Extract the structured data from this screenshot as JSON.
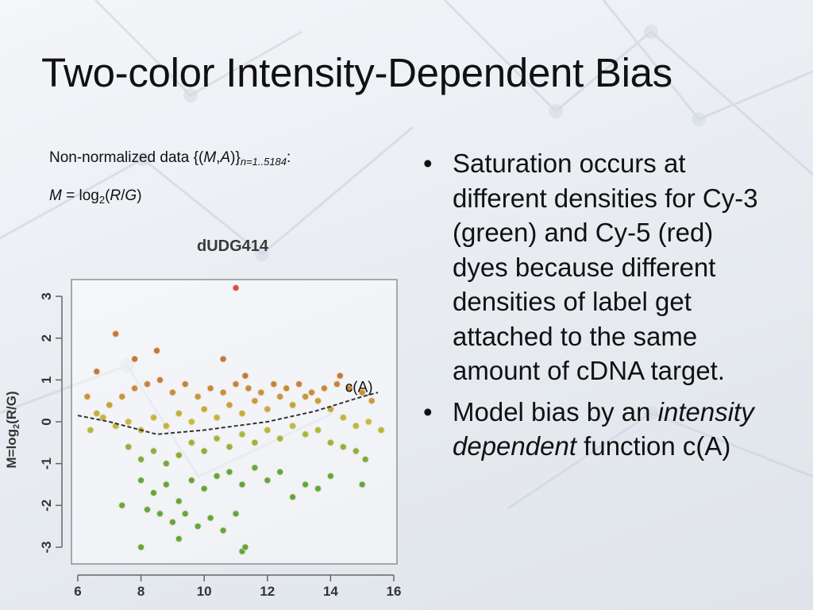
{
  "slide": {
    "title": "Two-color Intensity-Dependent Bias",
    "caption_1": {
      "prefix": "Non-normalized data {(",
      "m": "M",
      "comma": ",",
      "a": "A",
      "close": ")}",
      "subscript": "n=1..5184",
      "suffix": ":"
    },
    "caption_2": {
      "m": "M",
      "eq": " = log",
      "base": "2",
      "open": "(",
      "r": "R",
      "slash": "/",
      "g": "G",
      "close": ")"
    },
    "bullets": [
      {
        "mark": "•",
        "text": "Saturation occurs at different densities for Cy-3 (green) and Cy-5 (red) dyes because different densities of label get attached to the same amount of cDNA target."
      },
      {
        "mark": "•",
        "text_before": "Model bias by an ",
        "text_italic": "intensity dependent",
        "text_after": " function c(A)"
      }
    ]
  },
  "chart_data": {
    "type": "scatter",
    "title": "dUDG414",
    "xlabel": "",
    "ylabel": "M=log2(R/G)",
    "ylabel_parts": {
      "pre": "M=log",
      "sub": "2",
      "post": "(R/G)"
    },
    "xlim": [
      5.8,
      16.1
    ],
    "ylim": [
      -3.4,
      3.4
    ],
    "xticks": [
      6,
      8,
      10,
      12,
      14,
      16
    ],
    "yticks": [
      -3,
      -2,
      -1,
      0,
      1,
      2,
      3
    ],
    "grid": false,
    "colors": {
      "low_M": "#3d9e1c",
      "mid": "#b7b412",
      "high_M": "#b86218",
      "outlier": "#cf2e2e",
      "curve": "#333333"
    },
    "series": [
      {
        "points": [
          [
            11.0,
            3.2
          ],
          [
            7.2,
            2.1
          ],
          [
            8.5,
            1.7
          ],
          [
            7.8,
            1.5
          ],
          [
            10.6,
            1.5
          ],
          [
            11.3,
            1.1
          ],
          [
            14.3,
            1.1
          ],
          [
            6.6,
            1.2
          ],
          [
            6.3,
            0.6
          ],
          [
            6.6,
            0.2
          ],
          [
            7.0,
            0.4
          ],
          [
            7.4,
            0.6
          ],
          [
            7.8,
            0.8
          ],
          [
            8.2,
            0.9
          ],
          [
            8.6,
            1.0
          ],
          [
            9.0,
            0.7
          ],
          [
            9.4,
            0.9
          ],
          [
            9.8,
            0.6
          ],
          [
            10.2,
            0.8
          ],
          [
            10.6,
            0.7
          ],
          [
            11.0,
            0.9
          ],
          [
            11.4,
            0.8
          ],
          [
            11.8,
            0.7
          ],
          [
            12.2,
            0.9
          ],
          [
            12.6,
            0.8
          ],
          [
            13.0,
            0.9
          ],
          [
            13.4,
            0.7
          ],
          [
            13.8,
            0.8
          ],
          [
            14.2,
            0.9
          ],
          [
            14.6,
            0.8
          ],
          [
            15.0,
            0.7
          ],
          [
            15.3,
            0.5
          ],
          [
            6.4,
            -0.2
          ],
          [
            6.8,
            0.1
          ],
          [
            7.2,
            -0.1
          ],
          [
            7.6,
            0.0
          ],
          [
            8.0,
            -0.2
          ],
          [
            8.4,
            0.1
          ],
          [
            8.8,
            -0.1
          ],
          [
            9.2,
            0.2
          ],
          [
            9.6,
            0.0
          ],
          [
            10.0,
            0.3
          ],
          [
            10.4,
            0.1
          ],
          [
            10.8,
            0.4
          ],
          [
            11.2,
            0.2
          ],
          [
            11.6,
            0.5
          ],
          [
            12.0,
            0.3
          ],
          [
            12.4,
            0.6
          ],
          [
            12.8,
            0.4
          ],
          [
            13.2,
            0.6
          ],
          [
            13.6,
            0.5
          ],
          [
            14.0,
            0.3
          ],
          [
            14.4,
            0.1
          ],
          [
            14.8,
            -0.1
          ],
          [
            15.2,
            0.0
          ],
          [
            15.6,
            -0.2
          ],
          [
            7.6,
            -0.6
          ],
          [
            8.0,
            -0.9
          ],
          [
            8.4,
            -0.7
          ],
          [
            8.8,
            -1.0
          ],
          [
            9.2,
            -0.8
          ],
          [
            9.6,
            -0.5
          ],
          [
            10.0,
            -0.7
          ],
          [
            10.4,
            -0.4
          ],
          [
            10.8,
            -0.6
          ],
          [
            11.2,
            -0.3
          ],
          [
            11.6,
            -0.5
          ],
          [
            12.0,
            -0.2
          ],
          [
            12.4,
            -0.4
          ],
          [
            12.8,
            -0.1
          ],
          [
            13.2,
            -0.3
          ],
          [
            13.6,
            -0.2
          ],
          [
            14.0,
            -0.5
          ],
          [
            14.4,
            -0.6
          ],
          [
            14.8,
            -0.7
          ],
          [
            15.1,
            -0.9
          ],
          [
            8.0,
            -1.4
          ],
          [
            8.4,
            -1.7
          ],
          [
            8.8,
            -1.5
          ],
          [
            9.2,
            -1.9
          ],
          [
            9.6,
            -1.4
          ],
          [
            10.0,
            -1.6
          ],
          [
            10.4,
            -1.3
          ],
          [
            10.8,
            -1.2
          ],
          [
            11.2,
            -1.5
          ],
          [
            11.6,
            -1.1
          ],
          [
            12.0,
            -1.4
          ],
          [
            12.4,
            -1.2
          ],
          [
            12.8,
            -1.8
          ],
          [
            13.2,
            -1.5
          ],
          [
            13.6,
            -1.6
          ],
          [
            14.0,
            -1.3
          ],
          [
            15.0,
            -1.5
          ],
          [
            8.6,
            -2.2
          ],
          [
            9.0,
            -2.4
          ],
          [
            9.4,
            -2.2
          ],
          [
            9.8,
            -2.5
          ],
          [
            10.2,
            -2.3
          ],
          [
            10.6,
            -2.6
          ],
          [
            11.0,
            -2.2
          ],
          [
            7.4,
            -2.0
          ],
          [
            8.2,
            -2.1
          ],
          [
            9.2,
            -2.8
          ],
          [
            8.0,
            -3.0
          ],
          [
            11.2,
            -3.1
          ],
          [
            11.3,
            -3.0
          ]
        ]
      }
    ],
    "curve": {
      "label": "c(A)",
      "points": [
        [
          6.0,
          0.15
        ],
        [
          7.0,
          0.0
        ],
        [
          8.5,
          -0.3
        ],
        [
          10.0,
          -0.2
        ],
        [
          12.0,
          0.0
        ],
        [
          13.5,
          0.25
        ],
        [
          15.0,
          0.6
        ],
        [
          15.5,
          0.7
        ]
      ]
    }
  }
}
